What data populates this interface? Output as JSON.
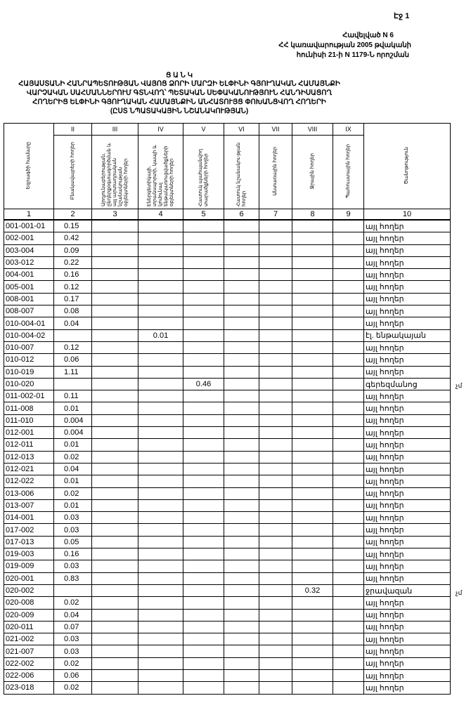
{
  "header": {
    "page": "Էջ 1",
    "annex_lines": [
      "Հավելված N 6",
      "ՀՀ կառավարության 2005 թվականի",
      "հունիսի 21-ի N 1179-Ն որոշման"
    ],
    "title_lines": [
      "Ց Ա Ն Կ",
      "ՀԱՅԱՍՏԱՆԻ ՀԱՆՐԱՊԵՏՈՒԹՅԱՆ ՎԱՅՈՑ ՁՈՐԻ ՄԱՐԶԻ ԵԼՓԻՆԻ ԳՅՈՒՂԱԿԱՆ ՀԱՄԱՅՆՔԻ",
      "ՎԱՐՉԱԿԱՆ ՍԱՀՄԱՆՆԵՐՈՒՄ ԳՏՆՎՈՂ՝ ՊԵՏԱԿԱՆ ՍԵՓԱԿԱՆՈՒԹՅՈՒՆ ՀԱՆԴԻՍԱՑՈՂ",
      "ՀՈՂԵՐԻՑ ԵԼՓԻՆԻ ԳՅՈՒՂԱԿԱՆ ՀԱՄԱՅՆՔԻՆ ԱՆՀԱՏՈՒՅՑ ՓՈԽԱՆՑՎՈՂ ՀՈՂԵՐԻ",
      "(ԸՍՏ ՆՊԱՏԱԿԱՅԻՆ ՆՇԱՆԱԿՈՒԹՅԱՆ)"
    ]
  },
  "table": {
    "roman": [
      "",
      "II",
      "III",
      "IV",
      "V",
      "VI",
      "VII",
      "VIII",
      "IX",
      ""
    ],
    "headers": [
      "Եզրագծի համարը",
      "Բնակավայրերի հողեր",
      "Արդյունաբերության, ընդերքօգտագործման և այլ արտադրական նշանակության օբյեկտների հողեր",
      "Էներգետիկայի, տրանսպորտի, կապի և կոմունալ ենթակառուցվածքների օբյեկտների հողեր",
      "Հատուկ պահպանվող տարածքների հողեր",
      "Հատուկ նշանակու-թյան հողեր",
      "Անտառային հողեր",
      "Ջրային հողեր",
      "Պահուստային հողեր",
      "Ծանոթություն"
    ],
    "numbers": [
      "1",
      "2",
      "3",
      "4",
      "5",
      "6",
      "7",
      "8",
      "9",
      "10"
    ],
    "rows": [
      [
        "001-001-01",
        "0.15",
        "",
        "",
        "",
        "",
        "",
        "",
        "",
        "այլ հողեր"
      ],
      [
        "002-001",
        "0.42",
        "",
        "",
        "",
        "",
        "",
        "",
        "",
        "այլ հողեր"
      ],
      [
        "003-004",
        "0.09",
        "",
        "",
        "",
        "",
        "",
        "",
        "",
        "այլ հողեր"
      ],
      [
        "003-012",
        "0.22",
        "",
        "",
        "",
        "",
        "",
        "",
        "",
        "այլ հողեր"
      ],
      [
        "004-001",
        "0.16",
        "",
        "",
        "",
        "",
        "",
        "",
        "",
        "այլ հողեր"
      ],
      [
        "005-001",
        "0.12",
        "",
        "",
        "",
        "",
        "",
        "",
        "",
        "այլ հողեր"
      ],
      [
        "008-001",
        "0.17",
        "",
        "",
        "",
        "",
        "",
        "",
        "",
        "այլ հողեր"
      ],
      [
        "008-007",
        "0.08",
        "",
        "",
        "",
        "",
        "",
        "",
        "",
        "այլ հողեր"
      ],
      [
        "010-004-01",
        "0.04",
        "",
        "",
        "",
        "",
        "",
        "",
        "",
        "այլ հողեր"
      ],
      [
        "010-004-02",
        "",
        "",
        "0.01",
        "",
        "",
        "",
        "",
        "",
        "էլ. ենթակայան"
      ],
      [
        "010-007",
        "0.12",
        "",
        "",
        "",
        "",
        "",
        "",
        "",
        "այլ հողեր"
      ],
      [
        "010-012",
        "0.06",
        "",
        "",
        "",
        "",
        "",
        "",
        "",
        "այլ հողեր"
      ],
      [
        "010-019",
        "1.11",
        "",
        "",
        "",
        "",
        "",
        "",
        "",
        "այլ հողեր"
      ],
      [
        "010-020",
        "",
        "",
        "",
        "0.46",
        "",
        "",
        "",
        "",
        "գերեզմանոց"
      ],
      [
        "011-002-01",
        "0.11",
        "",
        "",
        "",
        "",
        "",
        "",
        "",
        "այլ հողեր"
      ],
      [
        "011-008",
        "0.01",
        "",
        "",
        "",
        "",
        "",
        "",
        "",
        "այլ հողեր"
      ],
      [
        "011-010",
        "0.004",
        "",
        "",
        "",
        "",
        "",
        "",
        "",
        "այլ հողեր"
      ],
      [
        "012-001",
        "0.004",
        "",
        "",
        "",
        "",
        "",
        "",
        "",
        "այլ հողեր"
      ],
      [
        "012-011",
        "0.01",
        "",
        "",
        "",
        "",
        "",
        "",
        "",
        "այլ հողեր"
      ],
      [
        "012-013",
        "0.02",
        "",
        "",
        "",
        "",
        "",
        "",
        "",
        "այլ հողեր"
      ],
      [
        "012-021",
        "0.04",
        "",
        "",
        "",
        "",
        "",
        "",
        "",
        "այլ հողեր"
      ],
      [
        "012-022",
        "0.01",
        "",
        "",
        "",
        "",
        "",
        "",
        "",
        "այլ հողեր"
      ],
      [
        "013-006",
        "0.02",
        "",
        "",
        "",
        "",
        "",
        "",
        "",
        "այլ հողեր"
      ],
      [
        "013-007",
        "0.01",
        "",
        "",
        "",
        "",
        "",
        "",
        "",
        "այլ հողեր"
      ],
      [
        "014-001",
        "0.03",
        "",
        "",
        "",
        "",
        "",
        "",
        "",
        "այլ հողեր"
      ],
      [
        "017-002",
        "0.03",
        "",
        "",
        "",
        "",
        "",
        "",
        "",
        "այլ հողեր"
      ],
      [
        "017-013",
        "0.05",
        "",
        "",
        "",
        "",
        "",
        "",
        "",
        "այլ հողեր"
      ],
      [
        "019-003",
        "0.16",
        "",
        "",
        "",
        "",
        "",
        "",
        "",
        "այլ հողեր"
      ],
      [
        "019-009",
        "0.03",
        "",
        "",
        "",
        "",
        "",
        "",
        "",
        "այլ հողեր"
      ],
      [
        "020-001",
        "0.83",
        "",
        "",
        "",
        "",
        "",
        "",
        "",
        "այլ հողեր"
      ],
      [
        "020-002",
        "",
        "",
        "",
        "",
        "",
        "",
        "0.32",
        "",
        "ջրավազան"
      ],
      [
        "020-008",
        "0.02",
        "",
        "",
        "",
        "",
        "",
        "",
        "",
        "այլ հողեր"
      ],
      [
        "020-009",
        "0.04",
        "",
        "",
        "",
        "",
        "",
        "",
        "",
        "այլ հողեր"
      ],
      [
        "020-011",
        "0.07",
        "",
        "",
        "",
        "",
        "",
        "",
        "",
        "այլ հողեր"
      ],
      [
        "021-002",
        "0.03",
        "",
        "",
        "",
        "",
        "",
        "",
        "",
        "այլ հողեր"
      ],
      [
        "021-007",
        "0.03",
        "",
        "",
        "",
        "",
        "",
        "",
        "",
        "այլ հողեր"
      ],
      [
        "022-002",
        "0.02",
        "",
        "",
        "",
        "",
        "",
        "",
        "",
        "այլ հողեր"
      ],
      [
        "022-006",
        "0.06",
        "",
        "",
        "",
        "",
        "",
        "",
        "",
        "այլ հողեր"
      ],
      [
        "023-018",
        "0.02",
        "",
        "",
        "",
        "",
        "",
        "",
        "",
        "այլ հողեր"
      ]
    ]
  },
  "margin_marks": [
    "չմ",
    "չմ"
  ]
}
